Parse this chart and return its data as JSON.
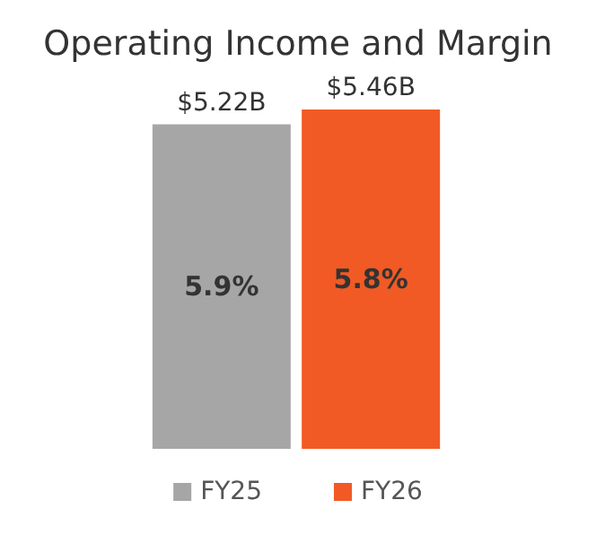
{
  "chart_data": {
    "type": "bar",
    "title": "Operating Income and Margin",
    "categories": [
      null
    ],
    "series": [
      {
        "name": "FY25",
        "color": "#a6a6a6",
        "values": [
          5.22
        ],
        "value_labels": [
          "$5.22B"
        ]
      },
      {
        "name": "FY26",
        "color": "#f15a24",
        "values": [
          5.46
        ],
        "value_labels": [
          "$5.46B"
        ]
      }
    ],
    "annotations": [
      "5.9%",
      "5.8%"
    ],
    "legend": "bottom"
  }
}
